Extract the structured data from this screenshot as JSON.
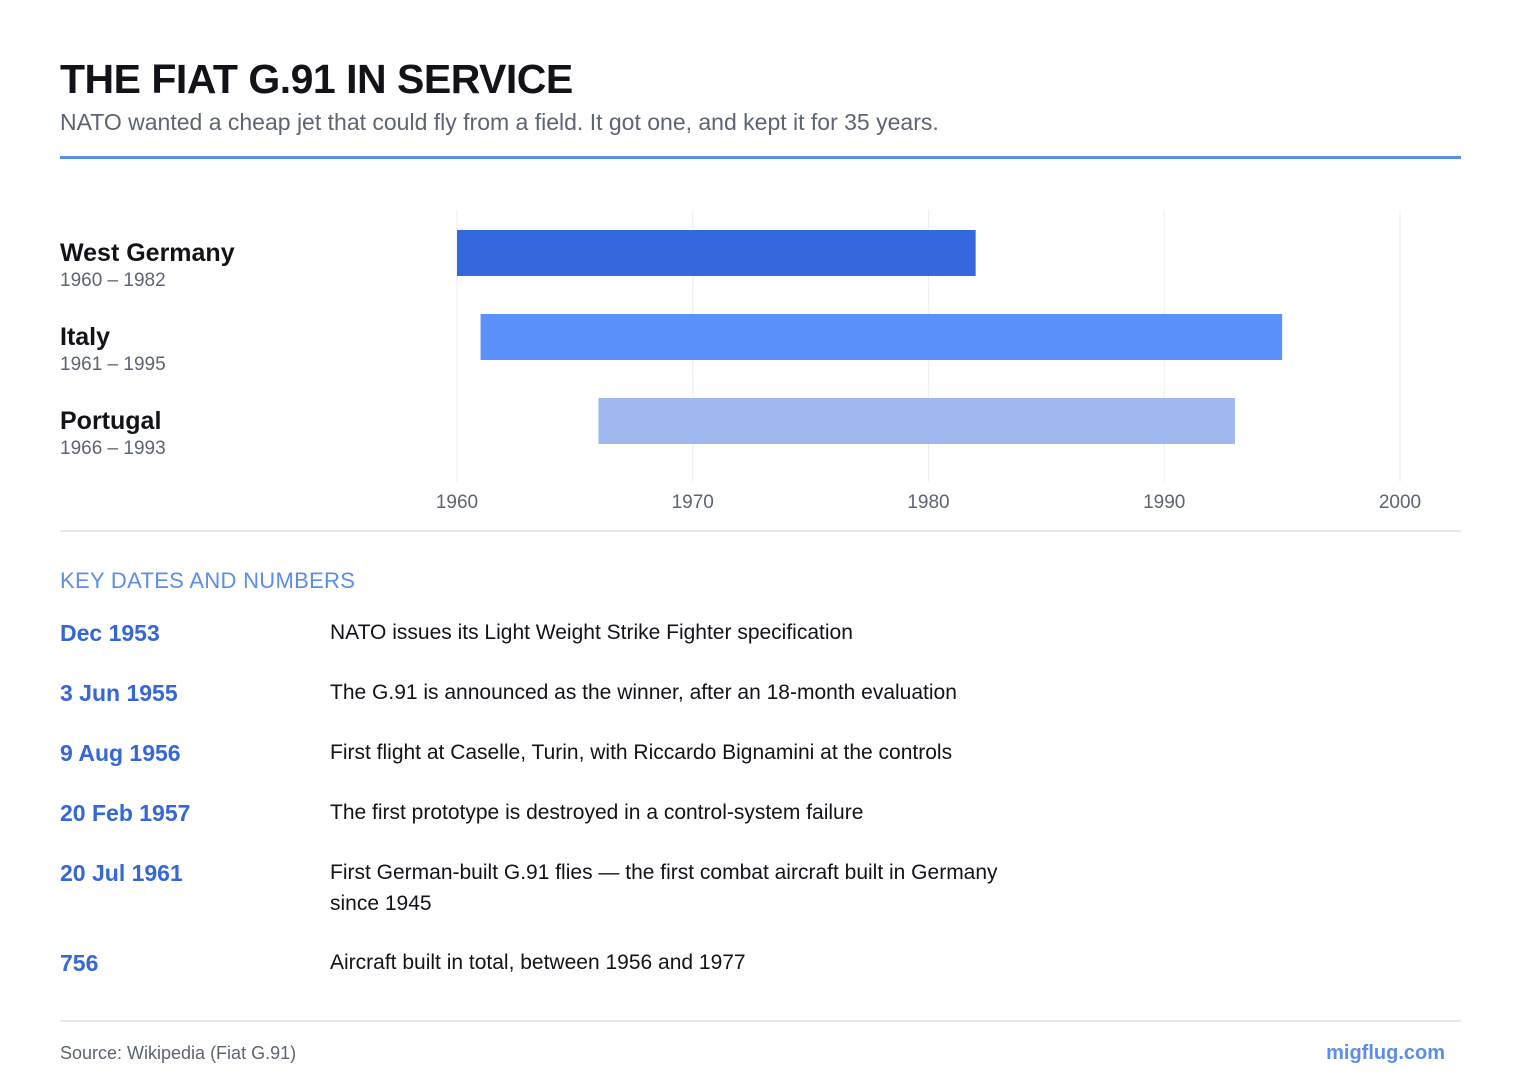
{
  "header": {
    "title": "THE FIAT G.91 IN SERVICE",
    "subtitle": "NATO wanted a cheap jet that could fly from a field. It got one, and kept it for 35 years."
  },
  "chart_data": {
    "type": "bar",
    "orientation": "horizontal-range",
    "title": "",
    "xlim": [
      1960,
      2000
    ],
    "x_ticks": [
      1960,
      1970,
      1980,
      1990,
      2000
    ],
    "grid": true,
    "series": [
      {
        "name": "West Germany",
        "range_label": "1960 – 1982",
        "start": 1960,
        "end": 1982,
        "color": "#3567dd"
      },
      {
        "name": "Italy",
        "range_label": "1961 – 1995",
        "start": 1961,
        "end": 1995,
        "color": "#5b91fb"
      },
      {
        "name": "Portugal",
        "range_label": "1966 – 1993",
        "start": 1966,
        "end": 1993,
        "color": "#9fb8ee"
      }
    ]
  },
  "key_dates": {
    "heading": "KEY DATES AND NUMBERS",
    "items": [
      {
        "date": "Dec 1953",
        "text": "NATO issues its Light Weight Strike Fighter specification"
      },
      {
        "date": "3 Jun 1955",
        "text": "The G.91 is announced as the winner, after an 18-month evaluation"
      },
      {
        "date": "9 Aug 1956",
        "text": "First flight at Caselle, Turin, with Riccardo Bignamini at the controls"
      },
      {
        "date": "20 Feb 1957",
        "text": "The first prototype is destroyed in a control-system failure"
      },
      {
        "date": "20 Jul 1961",
        "text": "First German-built G.91 flies — the first combat aircraft built in Germany since 1945"
      },
      {
        "date": "756",
        "text": "Aircraft built in total, between 1956 and 1977"
      }
    ]
  },
  "footer": {
    "source": "Source: Wikipedia (Fiat G.91)",
    "brand": "migflug.com"
  }
}
